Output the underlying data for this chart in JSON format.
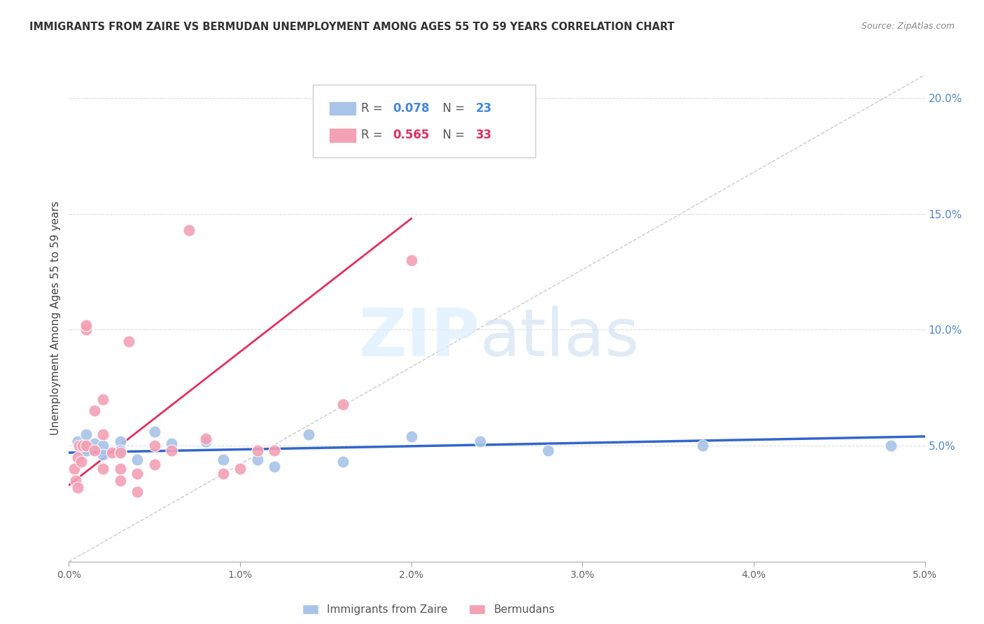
{
  "title": "IMMIGRANTS FROM ZAIRE VS BERMUDAN UNEMPLOYMENT AMONG AGES 55 TO 59 YEARS CORRELATION CHART",
  "source": "Source: ZipAtlas.com",
  "ylabel": "Unemployment Among Ages 55 to 59 years",
  "xlim": [
    0.0,
    0.05
  ],
  "ylim": [
    0.0,
    0.21
  ],
  "xticks": [
    0.0,
    0.01,
    0.02,
    0.03,
    0.04,
    0.05
  ],
  "xticklabels": [
    "0.0%",
    "1.0%",
    "2.0%",
    "3.0%",
    "4.0%",
    "5.0%"
  ],
  "yticks_right": [
    0.05,
    0.1,
    0.15,
    0.2
  ],
  "yticklabels_right": [
    "5.0%",
    "10.0%",
    "15.0%",
    "20.0%"
  ],
  "legend_label_blue": "Immigrants from Zaire",
  "legend_label_pink": "Bermudans",
  "blue_color": "#a8c4e8",
  "pink_color": "#f4a0b5",
  "blue_line_color": "#3366cc",
  "pink_line_color": "#e03060",
  "blue_dots_x": [
    0.0005,
    0.0008,
    0.001,
    0.001,
    0.0015,
    0.002,
    0.002,
    0.003,
    0.003,
    0.004,
    0.005,
    0.006,
    0.008,
    0.009,
    0.011,
    0.012,
    0.014,
    0.016,
    0.02,
    0.024,
    0.028,
    0.037,
    0.048
  ],
  "blue_dots_y": [
    0.052,
    0.05,
    0.055,
    0.048,
    0.051,
    0.05,
    0.046,
    0.052,
    0.048,
    0.044,
    0.056,
    0.051,
    0.052,
    0.044,
    0.044,
    0.041,
    0.055,
    0.043,
    0.054,
    0.052,
    0.048,
    0.05,
    0.05
  ],
  "pink_dots_x": [
    0.0003,
    0.0004,
    0.0005,
    0.0005,
    0.0006,
    0.0007,
    0.0008,
    0.001,
    0.001,
    0.001,
    0.0015,
    0.0015,
    0.002,
    0.002,
    0.002,
    0.0025,
    0.003,
    0.003,
    0.003,
    0.0035,
    0.004,
    0.004,
    0.005,
    0.005,
    0.006,
    0.007,
    0.008,
    0.009,
    0.01,
    0.011,
    0.012,
    0.016,
    0.02
  ],
  "pink_dots_y": [
    0.04,
    0.035,
    0.045,
    0.032,
    0.05,
    0.043,
    0.05,
    0.1,
    0.102,
    0.05,
    0.048,
    0.065,
    0.07,
    0.04,
    0.055,
    0.047,
    0.047,
    0.04,
    0.035,
    0.095,
    0.038,
    0.03,
    0.05,
    0.042,
    0.048,
    0.143,
    0.053,
    0.038,
    0.04,
    0.048,
    0.048,
    0.068,
    0.13
  ],
  "blue_line_x": [
    0.0,
    0.05
  ],
  "blue_line_y": [
    0.047,
    0.054
  ],
  "pink_line_x": [
    0.0,
    0.02
  ],
  "pink_line_y": [
    0.033,
    0.148
  ],
  "diag_line_x": [
    0.0,
    0.05
  ],
  "diag_line_y": [
    0.0,
    0.21
  ],
  "grid_yticks": [
    0.05,
    0.1,
    0.15,
    0.2
  ],
  "grid_color": "#dddddd",
  "background_color": "#ffffff"
}
